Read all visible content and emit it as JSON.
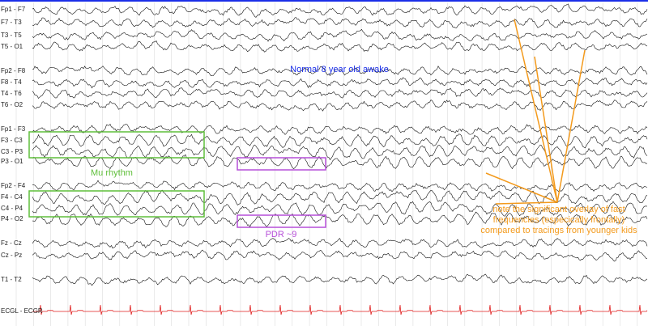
{
  "channels": [
    "Fp1 - F7",
    "F7 - T3",
    "T3 - T5",
    "T5 - O1",
    "Fp2 - F8",
    "F8 - T4",
    "T4 - T6",
    "T6 - O2",
    "Fp1 - F3",
    "F3 - C3",
    "C3 - P3",
    "P3 - O1",
    "Fp2 - F4",
    "F4 - C4",
    "C4 - P4",
    "P4 - O2",
    "Fz - Cz",
    "Cz - Pz",
    "T1 - T2",
    "ECGL - ECGR"
  ],
  "annotations": {
    "title": "Normal 8 year old awake",
    "mu": "Mu rhythm",
    "pdr": "PDR ~9",
    "note": [
      "note the significant overlay of fast",
      "frequencies (especically frontally)",
      "compared to tracings from younger kids"
    ]
  }
}
